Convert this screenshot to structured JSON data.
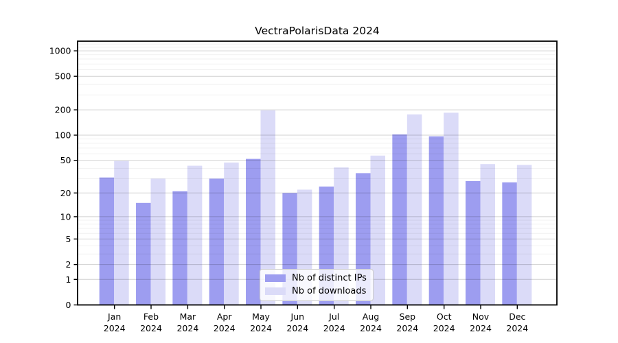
{
  "chart_data": {
    "type": "bar",
    "title": "VectraPolarisData 2024",
    "categories": [
      "Jan",
      "Feb",
      "Mar",
      "Apr",
      "May",
      "Jun",
      "Jul",
      "Aug",
      "Sep",
      "Oct",
      "Nov",
      "Dec"
    ],
    "year_label": "2024",
    "series": [
      {
        "name": "Nb of distinct IPs",
        "color": "#9d9df0",
        "values": [
          31,
          15,
          21,
          30,
          52,
          20,
          24,
          35,
          102,
          97,
          28,
          27
        ]
      },
      {
        "name": "Nb of downloads",
        "color": "#dbdbf8",
        "values": [
          49,
          30,
          43,
          47,
          197,
          22,
          41,
          57,
          177,
          185,
          45,
          44
        ]
      }
    ],
    "yscale": "log1p",
    "ylim": [
      0,
      1300
    ],
    "yticks": [
      0,
      1,
      2,
      5,
      10,
      20,
      50,
      100,
      200,
      500,
      1000
    ],
    "minor_yticks": [
      3,
      4,
      6,
      7,
      8,
      9,
      30,
      40,
      60,
      70,
      80,
      90,
      300,
      400,
      600,
      700,
      800,
      900,
      1100,
      1200
    ],
    "grid": true,
    "legend_position": "lower center",
    "colors": {
      "axis": "#000000",
      "tick_label": "#000000",
      "major_grid": "rgba(0,0,0,0.18)",
      "minor_grid": "rgba(0,0,0,0.06)",
      "background": "#ffffff",
      "legend_border": "#cccccc"
    }
  }
}
